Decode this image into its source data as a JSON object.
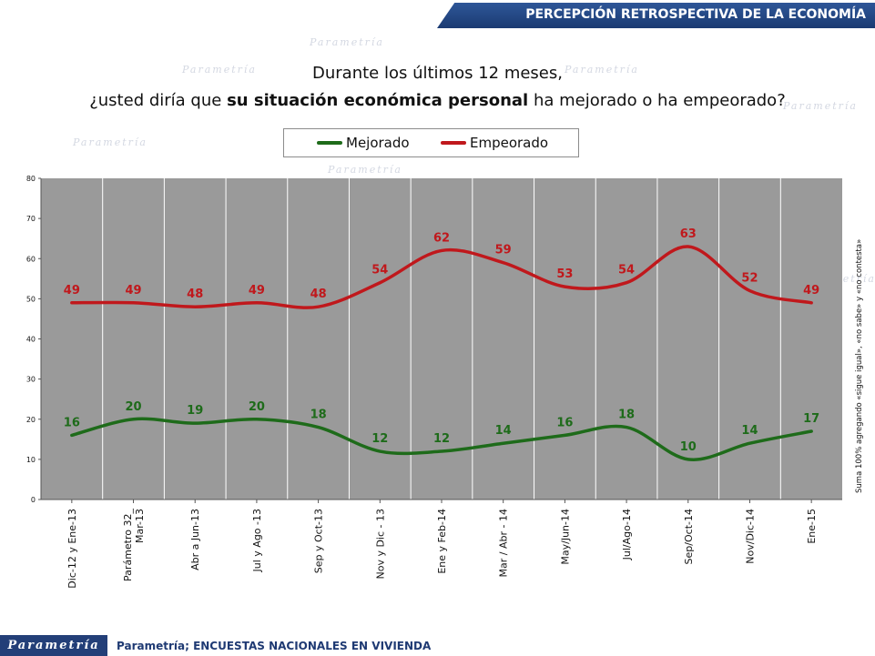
{
  "header": {
    "title": "PERCEPCIÓN RETROSPECTIVA DE LA ECONOMÍA"
  },
  "question": {
    "line1": "Durante los últimos 12 meses,",
    "line2_pre": "¿usted diría que ",
    "line2_bold": "su situación económica personal",
    "line2_post": " ha mejorado o ha empeorado?"
  },
  "watermark": "Parametría",
  "side_note": "Suma 100% agregando «sigue igual», «no sabe» y «no contesta»",
  "footer": {
    "logo": "Parametría",
    "source": "Parametría; ENCUESTAS NACIONALES EN VIVIENDA"
  },
  "colors": {
    "mejorado": "#1e6b1a",
    "empeorado": "#c0181c",
    "plot_bg": "#9a9a9a",
    "header": "#1f3f7a"
  },
  "chart_data": {
    "type": "line",
    "categories": [
      "Dic-12 y Ene-13",
      "Parámetro 32_ Mar-13",
      "Abr a Jun-13",
      "Jul y Ago -13",
      "Sep y Oct-13",
      "Nov y Dic - 13",
      "Ene y Feb-14",
      "Mar / Abr - 14",
      "May/Jun-14",
      "Jul/Ago-14",
      "Sep/Oct-14",
      "Nov/Dic-14",
      "Ene-15"
    ],
    "series": [
      {
        "name": "Mejorado",
        "color": "#1e6b1a",
        "values": [
          16,
          20,
          19,
          20,
          18,
          12,
          12,
          14,
          16,
          18,
          10,
          14,
          17
        ]
      },
      {
        "name": "Empeorado",
        "color": "#c0181c",
        "values": [
          49,
          49,
          48,
          49,
          48,
          54,
          62,
          59,
          53,
          54,
          63,
          52,
          49
        ]
      }
    ],
    "ylim": [
      0,
      80
    ],
    "yticks": [
      0,
      10,
      20,
      30,
      40,
      50,
      60,
      70,
      80
    ],
    "legend": "top-center",
    "grid": "vertical"
  }
}
